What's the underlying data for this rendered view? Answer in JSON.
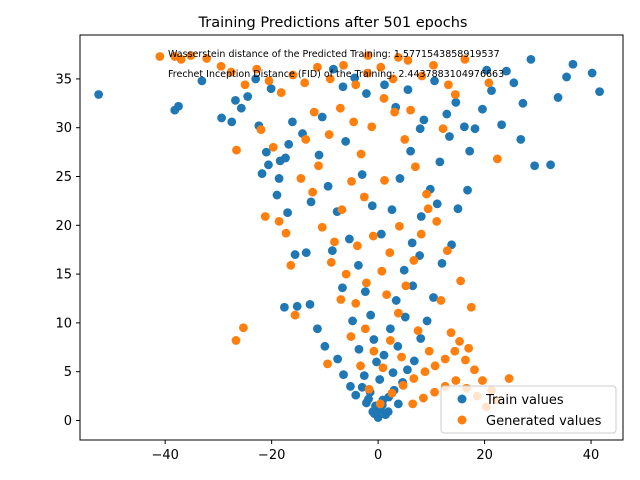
{
  "chart_data": {
    "type": "scatter",
    "title": "Training Predictions after 501 epochs",
    "xlabel": "",
    "ylabel": "",
    "xlim": [
      -56,
      46
    ],
    "ylim": [
      -2,
      39.5
    ],
    "xticks": [
      -40,
      -20,
      0,
      20,
      40
    ],
    "yticks": [
      0,
      5,
      10,
      15,
      20,
      25,
      30,
      35
    ],
    "grid": false,
    "legend_position": "bottom-right",
    "annotations": [
      "Wasserstein distance of the Predicted Training: 1.5771543858919537",
      "Frechet Inception Distance (FID) of the Training: 2.4437883104976663"
    ],
    "series": [
      {
        "name": "Train values",
        "color": "#1f77b4",
        "points": [
          [
            -52.5,
            33.4
          ],
          [
            -37.5,
            32.2
          ],
          [
            -38.2,
            31.8
          ],
          [
            -33.1,
            34.8
          ],
          [
            -29.4,
            31.0
          ],
          [
            -27.5,
            30.6
          ],
          [
            -26.8,
            32.8
          ],
          [
            -25.7,
            32.0
          ],
          [
            -24.5,
            33.2
          ],
          [
            -23.0,
            35.0
          ],
          [
            -22.4,
            30.2
          ],
          [
            -21.8,
            25.3
          ],
          [
            -21.0,
            27.5
          ],
          [
            -20.6,
            26.2
          ],
          [
            -19.0,
            23.1
          ],
          [
            -18.6,
            24.8
          ],
          [
            -18.4,
            26.6
          ],
          [
            -17.4,
            26.9
          ],
          [
            -17.0,
            21.3
          ],
          [
            -16.8,
            28.3
          ],
          [
            -15.6,
            17.0
          ],
          [
            -17.6,
            11.6
          ],
          [
            -15.2,
            11.7
          ],
          [
            -13.5,
            17.2
          ],
          [
            -11.4,
            9.4
          ],
          [
            -12.8,
            11.9
          ],
          [
            -10.0,
            7.6
          ],
          [
            -7.6,
            6.3
          ],
          [
            -6.5,
            4.7
          ],
          [
            -5.2,
            3.5
          ],
          [
            -4.2,
            2.6
          ],
          [
            -3.0,
            3.4
          ],
          [
            -2.2,
            1.8
          ],
          [
            -1.5,
            2.9
          ],
          [
            -1.0,
            0.9
          ],
          [
            -0.5,
            1.5
          ],
          [
            0.0,
            0.3
          ],
          [
            0.4,
            1.1
          ],
          [
            0.9,
            2.1
          ],
          [
            1.4,
            0.6
          ],
          [
            2.0,
            2.4
          ],
          [
            3.0,
            3.1
          ],
          [
            3.8,
            1.7
          ],
          [
            4.6,
            3.9
          ],
          [
            5.5,
            5.2
          ],
          [
            6.8,
            6.1
          ],
          [
            8.0,
            8.4
          ],
          [
            9.2,
            10.2
          ],
          [
            10.4,
            12.6
          ],
          [
            12.0,
            16.1
          ],
          [
            13.8,
            18.0
          ],
          [
            15.0,
            21.7
          ],
          [
            16.8,
            23.6
          ],
          [
            17.2,
            27.6
          ],
          [
            18.2,
            29.9
          ],
          [
            19.6,
            31.9
          ],
          [
            21.3,
            33.8
          ],
          [
            23.2,
            30.3
          ],
          [
            24.1,
            35.8
          ],
          [
            25.5,
            34.6
          ],
          [
            26.8,
            28.8
          ],
          [
            27.2,
            32.5
          ],
          [
            28.7,
            37.0
          ],
          [
            29.4,
            26.1
          ],
          [
            32.4,
            26.2
          ],
          [
            33.8,
            33.1
          ],
          [
            35.4,
            35.2
          ],
          [
            36.6,
            36.5
          ],
          [
            40.2,
            35.6
          ],
          [
            41.6,
            33.7
          ],
          [
            -8.4,
            36.0
          ],
          [
            -6.6,
            34.2
          ],
          [
            -4.4,
            35.1
          ],
          [
            -2.2,
            33.5
          ],
          [
            1.2,
            34.4
          ],
          [
            3.3,
            32.1
          ],
          [
            5.6,
            33.9
          ],
          [
            8.6,
            30.8
          ],
          [
            10.6,
            34.8
          ],
          [
            12.9,
            31.4
          ],
          [
            -14.2,
            29.4
          ],
          [
            -11.1,
            27.2
          ],
          [
            -9.4,
            24.0
          ],
          [
            -7.7,
            21.4
          ],
          [
            -5.4,
            18.6
          ],
          [
            -3.7,
            15.9
          ],
          [
            -2.4,
            13.2
          ],
          [
            -1.4,
            10.8
          ],
          [
            -0.8,
            8.3
          ],
          [
            -0.3,
            6.0
          ],
          [
            0.3,
            4.2
          ],
          [
            1.1,
            6.7
          ],
          [
            2.3,
            9.4
          ],
          [
            3.4,
            12.3
          ],
          [
            4.9,
            15.4
          ],
          [
            6.4,
            18.2
          ],
          [
            8.1,
            20.9
          ],
          [
            9.8,
            23.7
          ],
          [
            11.6,
            26.5
          ],
          [
            13.4,
            29.1
          ],
          [
            -10.5,
            31.1
          ],
          [
            -6.1,
            28.6
          ],
          [
            -3.0,
            25.2
          ],
          [
            -1.1,
            22.0
          ],
          [
            0.6,
            19.1
          ],
          [
            2.6,
            21.6
          ],
          [
            4.1,
            24.8
          ],
          [
            6.1,
            27.6
          ],
          [
            7.9,
            29.9
          ],
          [
            14.6,
            32.6
          ],
          [
            -1.8,
            2.2
          ],
          [
            -0.7,
            0.7
          ],
          [
            0.8,
            1.6
          ],
          [
            1.9,
            0.9
          ],
          [
            -2.6,
            4.6
          ],
          [
            2.8,
            4.9
          ],
          [
            -3.6,
            7.3
          ],
          [
            3.7,
            7.6
          ],
          [
            -4.8,
            10.2
          ],
          [
            5.1,
            10.6
          ],
          [
            -6.7,
            13.6
          ],
          [
            6.5,
            13.8
          ],
          [
            -8.6,
            17.4
          ],
          [
            7.8,
            16.9
          ],
          [
            -12.6,
            22.4
          ],
          [
            11.1,
            22.2
          ],
          [
            -16.1,
            30.6
          ],
          [
            16.2,
            30.1
          ],
          [
            20.4,
            35.9
          ],
          [
            -20.1,
            34.0
          ]
        ]
      },
      {
        "name": "Generated values",
        "color": "#ff7f0e",
        "points": [
          [
            -41.0,
            37.3
          ],
          [
            -38.2,
            37.3
          ],
          [
            -37.0,
            37.0
          ],
          [
            -35.2,
            37.4
          ],
          [
            -32.2,
            37.1
          ],
          [
            -29.5,
            36.3
          ],
          [
            -27.6,
            35.7
          ],
          [
            -25.0,
            34.4
          ],
          [
            -22.8,
            36.0
          ],
          [
            -20.5,
            34.8
          ],
          [
            -18.2,
            33.6
          ],
          [
            -16.0,
            35.4
          ],
          [
            -13.8,
            34.6
          ],
          [
            -11.4,
            36.2
          ],
          [
            -9.0,
            35.0
          ],
          [
            -6.5,
            36.4
          ],
          [
            -4.2,
            34.4
          ],
          [
            -2.0,
            35.6
          ],
          [
            0.5,
            36.2
          ],
          [
            2.8,
            35.0
          ],
          [
            5.6,
            36.9
          ],
          [
            8.2,
            35.3
          ],
          [
            10.4,
            36.4
          ],
          [
            13.2,
            34.4
          ],
          [
            16.3,
            37.0
          ],
          [
            -26.6,
            27.7
          ],
          [
            -22.0,
            29.8
          ],
          [
            -19.7,
            28.0
          ],
          [
            -21.2,
            20.9
          ],
          [
            -18.6,
            20.4
          ],
          [
            -17.3,
            19.2
          ],
          [
            -16.4,
            15.9
          ],
          [
            -15.6,
            10.8
          ],
          [
            -25.3,
            9.5
          ],
          [
            -26.7,
            8.2
          ],
          [
            -9.5,
            5.8
          ],
          [
            -12.3,
            23.4
          ],
          [
            -10.5,
            19.8
          ],
          [
            -8.8,
            16.2
          ],
          [
            -7.0,
            12.4
          ],
          [
            -5.1,
            8.6
          ],
          [
            -3.3,
            5.6
          ],
          [
            -1.7,
            3.2
          ],
          [
            0.4,
            1.7
          ],
          [
            2.6,
            2.8
          ],
          [
            4.7,
            3.6
          ],
          [
            6.7,
            4.3
          ],
          [
            8.8,
            5.0
          ],
          [
            10.7,
            5.6
          ],
          [
            12.6,
            6.3
          ],
          [
            14.4,
            7.1
          ],
          [
            16.4,
            6.2
          ],
          [
            18.1,
            5.2
          ],
          [
            19.6,
            4.1
          ],
          [
            21.3,
            3.1
          ],
          [
            22.2,
            2.1
          ],
          [
            24.6,
            4.3
          ],
          [
            20.3,
            1.4
          ],
          [
            18.6,
            2.5
          ],
          [
            16.6,
            3.3
          ],
          [
            14.6,
            4.1
          ],
          [
            12.6,
            3.5
          ],
          [
            10.6,
            2.9
          ],
          [
            8.5,
            2.3
          ],
          [
            6.5,
            1.7
          ],
          [
            17.5,
            11.6
          ],
          [
            15.5,
            14.3
          ],
          [
            13.0,
            17.4
          ],
          [
            11.0,
            20.4
          ],
          [
            9.1,
            23.2
          ],
          [
            7.0,
            26.0
          ],
          [
            5.0,
            28.8
          ],
          [
            3.1,
            31.6
          ],
          [
            1.1,
            33.0
          ],
          [
            -1.2,
            30.1
          ],
          [
            -3.2,
            27.3
          ],
          [
            -5.0,
            24.5
          ],
          [
            -6.8,
            21.6
          ],
          [
            -8.2,
            18.3
          ],
          [
            -6.0,
            15.0
          ],
          [
            -4.2,
            12.0
          ],
          [
            -2.4,
            9.4
          ],
          [
            -0.8,
            7.1
          ],
          [
            0.9,
            5.4
          ],
          [
            2.3,
            8.2
          ],
          [
            3.8,
            11.0
          ],
          [
            5.2,
            13.8
          ],
          [
            6.7,
            16.4
          ],
          [
            8.1,
            19.1
          ],
          [
            9.4,
            21.7
          ],
          [
            -13.6,
            28.8
          ],
          [
            -11.2,
            26.1
          ],
          [
            -9.2,
            29.3
          ],
          [
            -7.1,
            32.0
          ],
          [
            -4.6,
            30.6
          ],
          [
            -2.6,
            22.9
          ],
          [
            -0.9,
            18.9
          ],
          [
            0.7,
            15.3
          ],
          [
            2.2,
            17.2
          ],
          [
            4.0,
            19.9
          ],
          [
            11.8,
            12.3
          ],
          [
            13.7,
            9.0
          ],
          [
            15.3,
            8.1
          ],
          [
            17.0,
            7.4
          ],
          [
            12.2,
            29.9
          ],
          [
            14.5,
            33.4
          ],
          [
            20.8,
            34.6
          ],
          [
            22.4,
            26.8
          ],
          [
            -1.9,
            37.4
          ],
          [
            3.8,
            37.2
          ],
          [
            -14.5,
            24.8
          ],
          [
            -12.0,
            31.6
          ],
          [
            -3.9,
            17.9
          ],
          [
            1.6,
            12.9
          ],
          [
            7.5,
            9.2
          ],
          [
            9.6,
            7.1
          ],
          [
            4.4,
            6.5
          ],
          [
            -2.2,
            14.1
          ],
          [
            1.2,
            24.6
          ],
          [
            6.1,
            31.8
          ]
        ]
      }
    ]
  }
}
